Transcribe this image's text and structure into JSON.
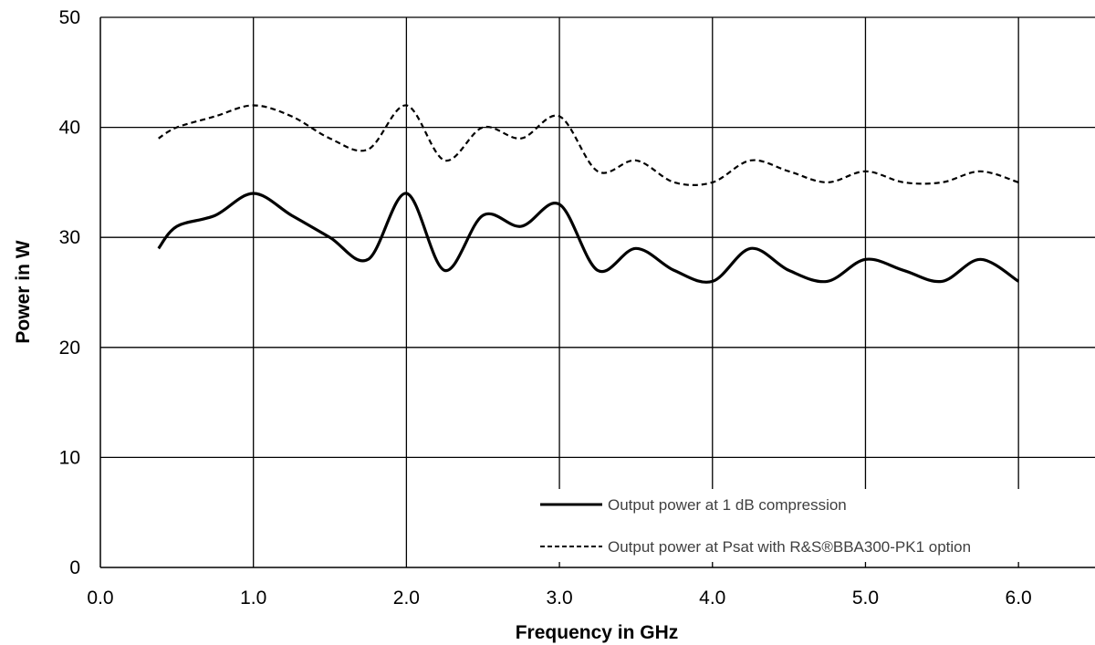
{
  "chart_data": {
    "type": "line",
    "xlabel": "Frequency in GHz",
    "ylabel": "Power in W",
    "xlim": [
      0,
      6.5
    ],
    "ylim": [
      0,
      50
    ],
    "x_ticks": [
      "0.0",
      "1.0",
      "2.0",
      "3.0",
      "4.0",
      "5.0",
      "6.0"
    ],
    "y_ticks": [
      "0",
      "10",
      "20",
      "30",
      "40",
      "50"
    ],
    "grid": true,
    "legend_position": "bottom-right",
    "series": [
      {
        "name": "Output power at 1 dB compression",
        "style": "solid",
        "color": "#000000",
        "x": [
          0.38,
          0.5,
          0.75,
          1.0,
          1.25,
          1.5,
          1.75,
          2.0,
          2.25,
          2.5,
          2.75,
          3.0,
          3.25,
          3.5,
          3.75,
          4.0,
          4.25,
          4.5,
          4.75,
          5.0,
          5.25,
          5.5,
          5.75,
          6.0
        ],
        "values": [
          29,
          31,
          32,
          34,
          32,
          30,
          28,
          34,
          27,
          32,
          31,
          33,
          27,
          29,
          27,
          26,
          29,
          27,
          26,
          28,
          27,
          26,
          28,
          26
        ]
      },
      {
        "name": "Output power at Psat with R&S®BBA300-PK1 option",
        "style": "dashed",
        "color": "#000000",
        "x": [
          0.38,
          0.5,
          0.75,
          1.0,
          1.25,
          1.5,
          1.75,
          2.0,
          2.25,
          2.5,
          2.75,
          3.0,
          3.25,
          3.5,
          3.75,
          4.0,
          4.25,
          4.5,
          4.75,
          5.0,
          5.25,
          5.5,
          5.75,
          6.0
        ],
        "values": [
          39,
          40,
          41,
          42,
          41,
          39,
          38,
          42,
          37,
          40,
          39,
          41,
          36,
          37,
          35,
          35,
          37,
          36,
          35,
          36,
          35,
          35,
          36,
          35
        ]
      }
    ]
  }
}
